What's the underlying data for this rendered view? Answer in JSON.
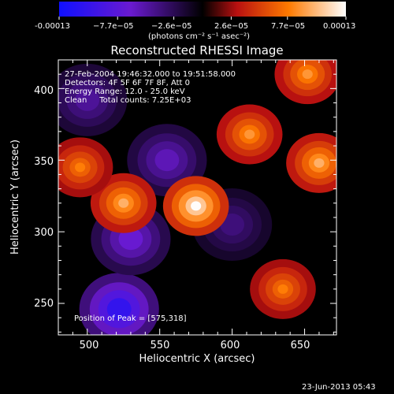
{
  "chart_data": {
    "type": "heatmap",
    "title": "Reconstructed RHESSI Image",
    "xlabel": "Heliocentric X (arcsec)",
    "ylabel": "Heliocentric Y (arcsec)",
    "xlim": [
      480,
      672
    ],
    "ylim": [
      228,
      420
    ],
    "x_ticks": [
      "500",
      "550",
      "600",
      "650"
    ],
    "x_tick_values": [
      500,
      550,
      600,
      650
    ],
    "y_ticks": [
      "250",
      "300",
      "350",
      "400"
    ],
    "y_tick_values": [
      250,
      300,
      350,
      400
    ],
    "colorbar": {
      "tick_labels": [
        "-0.00013",
        "−7.7e−05",
        "−2.6e−05",
        "2.6e−05",
        "7.7e−05",
        "0.00013"
      ],
      "tick_values": [
        -0.00013,
        -7.7e-05,
        -2.6e-05,
        2.6e-05,
        7.7e-05,
        0.00013
      ],
      "range": [
        -0.00013,
        0.00013
      ],
      "units_label": "(photons cm⁻² s⁻¹ asec⁻²)"
    },
    "info_lines": [
      "27-Feb-2004 19:46:32.000 to 19:51:58.000",
      "Detectors: 4F 5F 6F 7F 8F, Att 0",
      "Energy Range: 12.0 - 25.0 keV",
      "Clean     Total counts: 7.25E+03"
    ],
    "peak_label": "Position of Peak = [575,318]",
    "peak_position": [
      575,
      318
    ],
    "bright_sources": [
      {
        "x": 575,
        "y": 318,
        "value": 0.00013
      },
      {
        "x": 525,
        "y": 320,
        "value": 0.0001
      },
      {
        "x": 660,
        "y": 348,
        "value": 0.0001
      },
      {
        "x": 612,
        "y": 368,
        "value": 9e-05
      },
      {
        "x": 652,
        "y": 410,
        "value": 9e-05
      },
      {
        "x": 635,
        "y": 260,
        "value": 8e-05
      },
      {
        "x": 495,
        "y": 345,
        "value": 8e-05
      }
    ],
    "dim_regions": [
      {
        "x": 522,
        "y": 246,
        "value": -0.00011
      },
      {
        "x": 530,
        "y": 295,
        "value": -7e-05
      },
      {
        "x": 555,
        "y": 350,
        "value": -6e-05
      },
      {
        "x": 600,
        "y": 305,
        "value": -4e-05
      },
      {
        "x": 500,
        "y": 392,
        "value": -5e-05
      }
    ],
    "grid": false,
    "legend": "none"
  },
  "footer_date": "23-Jun-2013 05:43"
}
